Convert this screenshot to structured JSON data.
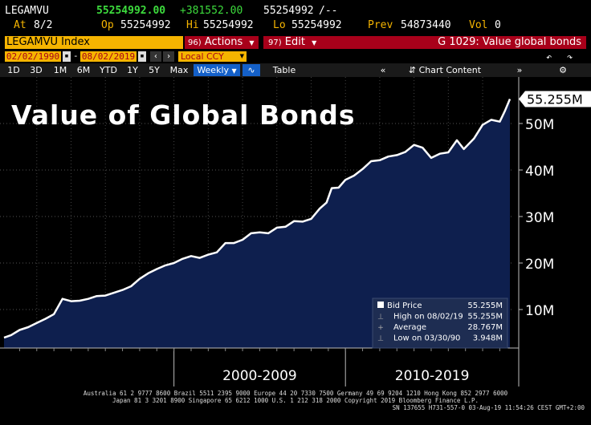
{
  "header": {
    "ticker": "LEGAMVU",
    "last_value": "55254992.00",
    "change": "+381552.00",
    "bid_ask": "55254992",
    "bid_ask_suffix": "/--",
    "at_label": "At",
    "at_date": "8/2",
    "op_label": "Op",
    "op_value": "55254992",
    "hi_label": "Hi",
    "hi_value": "55254992",
    "lo_label": "Lo",
    "lo_value": "55254992",
    "prev_label": "Prev",
    "prev_value": "54873440",
    "vol_label": "Vol",
    "vol_value": "0"
  },
  "toolbar": {
    "security": "LEGAMVU Index",
    "actions_key": "96)",
    "actions_label": "Actions",
    "edit_key": "97)",
    "edit_label": "Edit",
    "function_label": "G 1029: Value global bonds",
    "start_date": "02/02/1990",
    "end_date": "08/02/2019",
    "currency": "Local CCY",
    "periods": [
      "1D",
      "3D",
      "1M",
      "6M",
      "YTD",
      "1Y",
      "5Y",
      "Max"
    ],
    "frequency": "Weekly",
    "table_label": "Table",
    "chart_content_label": "Chart Content"
  },
  "colors": {
    "accent_yellow": "#f5b400",
    "accent_red": "#a8001a",
    "area_fill": "#0e1f4e",
    "line": "#ffffff",
    "change_green": "#3ddc3d"
  },
  "chart_data": {
    "type": "area",
    "title": "Value of Global Bonds",
    "xlabel": "",
    "ylabel": "",
    "x_axis_groups": [
      "2000-2009",
      "2010-2019"
    ],
    "x_range": [
      1990.09,
      2019.59
    ],
    "ylim": [
      0,
      60000000
    ],
    "y_ticks": [
      10000000,
      20000000,
      30000000,
      40000000,
      50000000
    ],
    "y_tick_labels": [
      "10M",
      "20M",
      "30M",
      "40M",
      "50M"
    ],
    "last_value_label": "55.255M",
    "grid": true,
    "legend_position": "bottom-right",
    "series": [
      {
        "name": "Bid Price",
        "x": [
          1990.09,
          1990.5,
          1991,
          1991.5,
          1992,
          1992.5,
          1993,
          1993.5,
          1994,
          1994.5,
          1995,
          1995.5,
          1996,
          1996.5,
          1997,
          1997.5,
          1998,
          1998.5,
          1999,
          1999.5,
          2000,
          2000.5,
          2001,
          2001.5,
          2002,
          2002.5,
          2003,
          2003.5,
          2004,
          2004.5,
          2005,
          2005.5,
          2006,
          2006.5,
          2007,
          2007.5,
          2008,
          2008.5,
          2008.9,
          2009.2,
          2009.6,
          2010,
          2010.5,
          2011,
          2011.5,
          2012,
          2012.5,
          2013,
          2013.5,
          2014,
          2014.5,
          2015,
          2015.5,
          2016,
          2016.5,
          2016.9,
          2017.5,
          2018,
          2018.5,
          2019,
          2019.3,
          2019.59
        ],
        "values": [
          3948000,
          4500000,
          5600000,
          6200000,
          7100000,
          8000000,
          9000000,
          12300000,
          11800000,
          11900000,
          12300000,
          12900000,
          13000000,
          13600000,
          14200000,
          15000000,
          16600000,
          17800000,
          18700000,
          19500000,
          20000000,
          20900000,
          21500000,
          21100000,
          21800000,
          22300000,
          24300000,
          24300000,
          25000000,
          26400000,
          26600000,
          26400000,
          27600000,
          27800000,
          29000000,
          28900000,
          29500000,
          31700000,
          33000000,
          36100000,
          36200000,
          37900000,
          38800000,
          40200000,
          41900000,
          42100000,
          42900000,
          43200000,
          43900000,
          45400000,
          44800000,
          42600000,
          43500000,
          43800000,
          46400000,
          44500000,
          46800000,
          49700000,
          50800000,
          50400000,
          52700000,
          55255000
        ]
      }
    ],
    "legend": {
      "items": [
        {
          "label": "Bid Price",
          "value": "55.255M"
        },
        {
          "label": "High on 08/02/19",
          "value": "55.255M"
        },
        {
          "label": "Average",
          "value": "28.767M"
        },
        {
          "label": "Low on 03/30/90",
          "value": "3.948M"
        }
      ]
    }
  },
  "footer": {
    "line1": "Australia 61 2 9777 8600 Brazil 5511 2395 9000 Europe 44 20 7330 7500 Germany 49 69 9204 1210 Hong Kong 852 2977 6000",
    "line2": "Japan 81 3 3201 8900        Singapore 65 6212 1000      U.S. 1 212 318 2000         Copyright 2019 Bloomberg Finance L.P.",
    "line3": "SN 137655 H731-557-0 03-Aug-19 11:54:26 CEST GMT+2:00"
  }
}
